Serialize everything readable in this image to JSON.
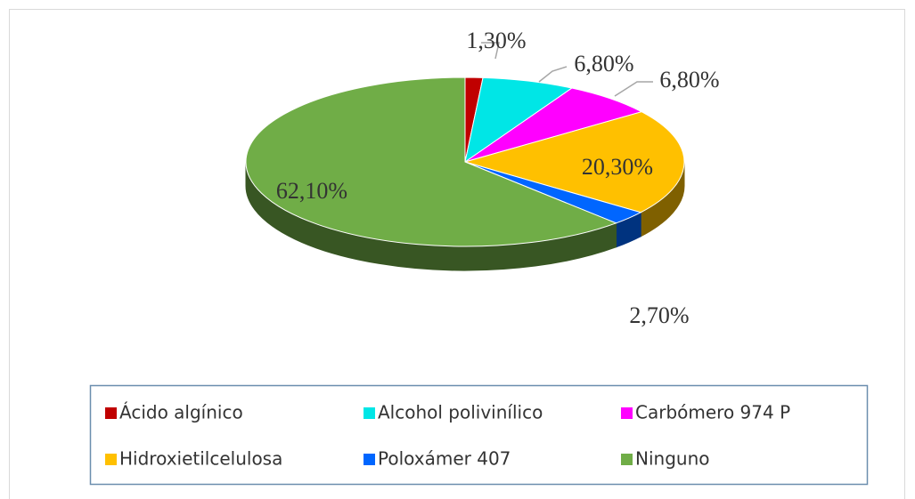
{
  "chart_data": {
    "type": "pie",
    "categories": [
      "Ácido algínico",
      "Alcohol polivinílico",
      "Carbómero 974 P",
      "Hidroxietilcelulosa",
      "Poloxámer 407",
      "Ninguno"
    ],
    "values": [
      1.3,
      6.8,
      6.8,
      20.3,
      2.7,
      62.1
    ],
    "value_labels": [
      "1,30%",
      "6,80%",
      "6,80%",
      "20,30%",
      "2,70%",
      "62,10%"
    ],
    "colors": [
      "#c00000",
      "#00e6e6",
      "#ff00ff",
      "#ffc000",
      "#0066ff",
      "#70ad47"
    ],
    "legend": "bottom"
  }
}
